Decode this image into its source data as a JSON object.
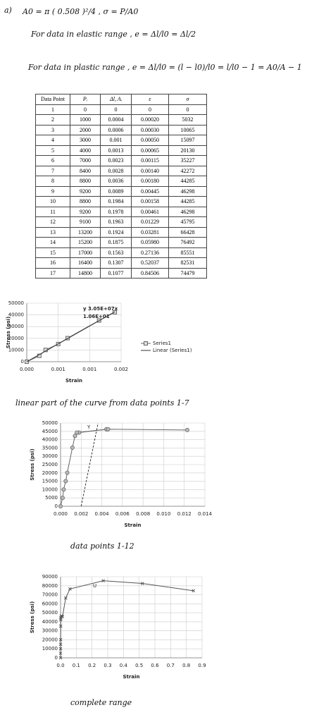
{
  "notes": [
    "a)",
    "A0 = π ( 0.508 )²/4 ,  σ = P/A0",
    "For data in elastic range ,  e = Δl/l0 = Δl/2",
    "For data in plastic range ,  e = Δl/l0 = (l − l0)/l0 = l/l0 − 1 = A0/A − 1"
  ],
  "table": {
    "header": [
      "Data Point",
      "Pᵢ",
      "Δl, Aᵢ",
      "ε",
      "σ"
    ],
    "rows": [
      [
        "1",
        "0",
        "0",
        "0",
        "0"
      ],
      [
        "2",
        "1000",
        "0.0004",
        "0.00020",
        "5032"
      ],
      [
        "3",
        "2000",
        "0.0006",
        "0.00030",
        "10065"
      ],
      [
        "4",
        "3000",
        "0.001",
        "0.00050",
        "15097"
      ],
      [
        "5",
        "4000",
        "0.0013",
        "0.00065",
        "20130"
      ],
      [
        "6",
        "7000",
        "0.0023",
        "0.00115",
        "35227"
      ],
      [
        "7",
        "8400",
        "0.0028",
        "0.00140",
        "42272"
      ],
      [
        "8",
        "8800",
        "0.0036",
        "0.00180",
        "44285"
      ],
      [
        "9",
        "9200",
        "0.0089",
        "0.00445",
        "46298"
      ],
      [
        "10",
        "8800",
        "0.1984",
        "0.00158",
        "44285"
      ],
      [
        "11",
        "9200",
        "0.1978",
        "0.00461",
        "46298"
      ],
      [
        "12",
        "9100",
        "0.1963",
        "0.01229",
        "45795"
      ],
      [
        "13",
        "13200",
        "0.1924",
        "0.03281",
        "66428"
      ],
      [
        "14",
        "15200",
        "0.1875",
        "0.05980",
        "76492"
      ],
      [
        "15",
        "17000",
        "0.1563",
        "0.27136",
        "85551"
      ],
      [
        "16",
        "16400",
        "0.1307",
        "0.52037",
        "82531"
      ],
      [
        "17",
        "14800",
        "0.1077",
        "0.84506",
        "74479"
      ]
    ]
  },
  "chart_data": [
    {
      "type": "scatter",
      "xlabel": "Strain",
      "ylabel": "Stress (psi)",
      "caption": "linear part of the curve from data points 1-7",
      "annotations": [
        "y  3.05E+07x",
        "1.06E+01"
      ],
      "grid": true,
      "legend": "right",
      "xlim": [
        0,
        0.0015
      ],
      "xticks": [
        {
          "value": 0,
          "label": "0.000"
        },
        {
          "value": 0.0005,
          "label": "0.001"
        },
        {
          "value": 0.001,
          "label": "0.001"
        },
        {
          "value": 0.0015,
          "label": "0.002"
        }
      ],
      "ylim": [
        0,
        50000
      ],
      "yticks": [
        0,
        10000,
        20000,
        30000,
        40000,
        50000
      ],
      "series": [
        {
          "name": "Series1",
          "color": "#666666",
          "marker": "square",
          "x": [
            0,
            0.0002,
            0.0003,
            0.0005,
            0.00065,
            0.00115,
            0.0014
          ],
          "values": [
            0,
            5032,
            10065,
            15097,
            20130,
            35227,
            42272
          ]
        },
        {
          "name": "Linear (Series1)",
          "color": "#333333",
          "marker": "none",
          "x": [
            0,
            0.0014
          ],
          "values": [
            -10.6,
            42689
          ]
        }
      ]
    },
    {
      "type": "scatter",
      "xlabel": "Strain",
      "ylabel": "Stress (psi)",
      "caption": "data points 1-12",
      "annotations": [
        "Y"
      ],
      "grid": true,
      "xlim": [
        0,
        0.014
      ],
      "xticks": [
        {
          "value": 0,
          "label": "0.000"
        },
        {
          "value": 0.002,
          "label": "0.002"
        },
        {
          "value": 0.004,
          "label": "0.004"
        },
        {
          "value": 0.006,
          "label": "0.006"
        },
        {
          "value": 0.008,
          "label": "0.008"
        },
        {
          "value": 0.01,
          "label": "0.010"
        },
        {
          "value": 0.012,
          "label": "0.012"
        },
        {
          "value": 0.014,
          "label": "0.014"
        }
      ],
      "ylim": [
        0,
        50000
      ],
      "yticks": [
        0,
        5000,
        10000,
        15000,
        20000,
        25000,
        30000,
        35000,
        40000,
        45000,
        50000
      ],
      "offset_line": {
        "x": [
          0.002,
          0.00364
        ],
        "values": [
          0,
          50000
        ]
      },
      "series": [
        {
          "color": "#666666",
          "marker": "circle",
          "x": [
            0,
            0.0002,
            0.0003,
            0.0005,
            0.00065,
            0.00115,
            0.0014,
            0.0018,
            0.00445,
            0.00158,
            0.00461,
            0.01229
          ],
          "values": [
            0,
            5032,
            10065,
            15097,
            20130,
            35227,
            42272,
            44285,
            46298,
            44285,
            46298,
            45795
          ]
        }
      ]
    },
    {
      "type": "scatter",
      "xlabel": "Strain",
      "ylabel": "Stress (psi)",
      "caption": "complete range",
      "annotations": [
        "U"
      ],
      "grid": true,
      "xlim": [
        0,
        0.9
      ],
      "xticks": [
        {
          "value": 0,
          "label": "0.0"
        },
        {
          "value": 0.1,
          "label": "0.1"
        },
        {
          "value": 0.2,
          "label": "0.2"
        },
        {
          "value": 0.3,
          "label": "0.3"
        },
        {
          "value": 0.4,
          "label": "0.4"
        },
        {
          "value": 0.5,
          "label": "0.5"
        },
        {
          "value": 0.6,
          "label": "0.6"
        },
        {
          "value": 0.7,
          "label": "0.7"
        },
        {
          "value": 0.8,
          "label": "0.8"
        },
        {
          "value": 0.9,
          "label": "0.9"
        }
      ],
      "ylim": [
        0,
        90000
      ],
      "yticks": [
        0,
        10000,
        20000,
        30000,
        40000,
        50000,
        60000,
        70000,
        80000,
        90000
      ],
      "series": [
        {
          "color": "#555555",
          "marker": "cross",
          "x": [
            0,
            0.0002,
            0.0003,
            0.0005,
            0.00065,
            0.00115,
            0.0014,
            0.0018,
            0.00445,
            0.00158,
            0.00461,
            0.01229,
            0.03281,
            0.0598,
            0.27136,
            0.52037,
            0.84506
          ],
          "values": [
            0,
            5032,
            10065,
            15097,
            20130,
            35227,
            42272,
            44285,
            46298,
            44285,
            46298,
            45795,
            66428,
            76492,
            85551,
            82531,
            74479
          ]
        }
      ]
    }
  ]
}
